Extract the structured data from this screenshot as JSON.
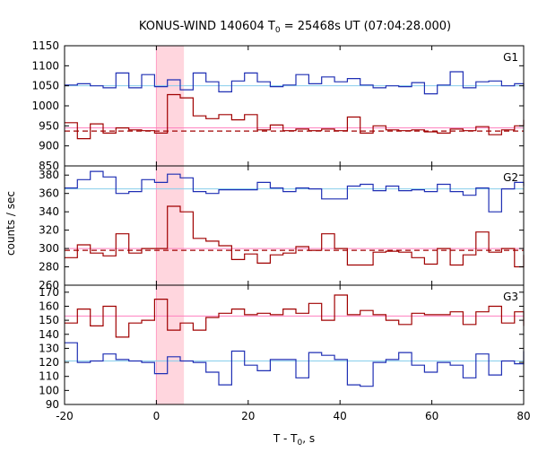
{
  "title": {
    "prefix": "KONUS-WIND 140604 T",
    "sub": "0",
    "suffix": " = 25468s UT (07:04:28.000)"
  },
  "xaxis": {
    "label_prefix": "T - T",
    "label_sub": "0",
    "label_suffix": ", s",
    "ticks": [
      -20,
      0,
      20,
      40,
      60,
      80
    ],
    "range": [
      -20,
      80
    ]
  },
  "ylabel": "counts / sec",
  "colors": {
    "blue": "#1f2fb4",
    "red": "#a00000",
    "bg_line": "#87ceeb",
    "level_line": "#ff7fbf",
    "fit_dash": "#a00000",
    "highlight": "#ffd6de",
    "highlight_line": "#ff9cc5"
  },
  "highlight": {
    "start": 0.0,
    "end": 6.0
  },
  "chart_data": [
    {
      "type": "line",
      "panel": "G1",
      "ylim": [
        850,
        1150
      ],
      "yticks": [
        850,
        900,
        950,
        1000,
        1050,
        1100,
        1150
      ],
      "series": [
        {
          "color": "blue",
          "edges": [
            -20,
            -17.2,
            -14.4,
            -11.6,
            -8.8,
            -6,
            -3.2,
            -0.4,
            2.4,
            5.2,
            8,
            10.8,
            13.6,
            16.4,
            19.2,
            22,
            24.8,
            27.6,
            30.4,
            33.2,
            36,
            38.8,
            41.6,
            44.4,
            47.2,
            50,
            52.8,
            55.6,
            58.4,
            61.2,
            64,
            66.8,
            69.6,
            72.4,
            75.2,
            78,
            80
          ],
          "values": [
            1052,
            1055,
            1050,
            1045,
            1082,
            1045,
            1078,
            1048,
            1065,
            1040,
            1082,
            1060,
            1035,
            1062,
            1082,
            1060,
            1048,
            1052,
            1078,
            1055,
            1072,
            1060,
            1068,
            1052,
            1045,
            1050,
            1048,
            1058,
            1030,
            1052,
            1085,
            1045,
            1060,
            1062,
            1050,
            1055,
            1040
          ]
        },
        {
          "color": "red",
          "edges": [
            -20,
            -17.2,
            -14.4,
            -11.6,
            -8.8,
            -6,
            -3.2,
            -0.4,
            2.4,
            5.2,
            8,
            10.8,
            13.6,
            16.4,
            19.2,
            22,
            24.8,
            27.6,
            30.4,
            33.2,
            36,
            38.8,
            41.6,
            44.4,
            47.2,
            50,
            52.8,
            55.6,
            58.4,
            61.2,
            64,
            66.8,
            69.6,
            72.4,
            75.2,
            78,
            80
          ],
          "values": [
            958,
            918,
            955,
            932,
            945,
            940,
            938,
            932,
            1028,
            1020,
            975,
            968,
            978,
            965,
            978,
            940,
            952,
            938,
            942,
            938,
            942,
            938,
            972,
            932,
            950,
            940,
            938,
            940,
            935,
            932,
            942,
            938,
            948,
            928,
            940,
            950,
            965
          ]
        }
      ],
      "background": 1050,
      "fit_level": 937,
      "pulse_level": 945
    },
    {
      "type": "line",
      "panel": "G2",
      "ylim": [
        260,
        390
      ],
      "yticks": [
        260,
        280,
        300,
        320,
        340,
        360,
        380
      ],
      "series": [
        {
          "color": "blue",
          "edges": [
            -20,
            -17.2,
            -14.4,
            -11.6,
            -8.8,
            -6,
            -3.2,
            -0.4,
            2.4,
            5.2,
            8,
            10.8,
            13.6,
            16.4,
            19.2,
            22,
            24.8,
            27.6,
            30.4,
            33.2,
            36,
            38.8,
            41.6,
            44.4,
            47.2,
            50,
            52.8,
            55.6,
            58.4,
            61.2,
            64,
            66.8,
            69.6,
            72.4,
            75.2,
            78,
            80
          ],
          "values": [
            366,
            375,
            384,
            378,
            360,
            362,
            375,
            372,
            381,
            377,
            362,
            360,
            364,
            364,
            364,
            372,
            366,
            362,
            366,
            365,
            354,
            354,
            368,
            370,
            363,
            368,
            363,
            364,
            362,
            370,
            362,
            358,
            366,
            340,
            365,
            372,
            368
          ]
        },
        {
          "color": "red",
          "edges": [
            -20,
            -17.2,
            -14.4,
            -11.6,
            -8.8,
            -6,
            -3.2,
            -0.4,
            2.4,
            5.2,
            8,
            10.8,
            13.6,
            16.4,
            19.2,
            22,
            24.8,
            27.6,
            30.4,
            33.2,
            36,
            38.8,
            41.6,
            44.4,
            47.2,
            50,
            52.8,
            55.6,
            58.4,
            61.2,
            64,
            66.8,
            69.6,
            72.4,
            75.2,
            78,
            80
          ],
          "values": [
            290,
            304,
            295,
            292,
            316,
            295,
            300,
            300,
            346,
            340,
            311,
            308,
            303,
            288,
            294,
            284,
            293,
            295,
            302,
            298,
            316,
            300,
            282,
            282,
            296,
            297,
            296,
            290,
            283,
            300,
            282,
            293,
            318,
            296,
            300,
            280,
            293
          ]
        }
      ],
      "background": 365,
      "fit_level": 298,
      "pulse_level": 300
    },
    {
      "type": "line",
      "panel": "G3",
      "ylim": [
        90,
        175
      ],
      "yticks": [
        90,
        100,
        110,
        120,
        130,
        140,
        150,
        160,
        170
      ],
      "series": [
        {
          "color": "red",
          "edges": [
            -20,
            -17.2,
            -14.4,
            -11.6,
            -8.8,
            -6,
            -3.2,
            -0.4,
            2.4,
            5.2,
            8,
            10.8,
            13.6,
            16.4,
            19.2,
            22,
            24.8,
            27.6,
            30.4,
            33.2,
            36,
            38.8,
            41.6,
            44.4,
            47.2,
            50,
            52.8,
            55.6,
            58.4,
            61.2,
            64,
            66.8,
            69.6,
            72.4,
            75.2,
            78,
            80
          ],
          "values": [
            148,
            158,
            146,
            160,
            138,
            148,
            150,
            165,
            143,
            148,
            143,
            152,
            155,
            158,
            154,
            155,
            154,
            158,
            155,
            162,
            150,
            168,
            154,
            157,
            154,
            150,
            147,
            155,
            154,
            154,
            156,
            147,
            156,
            160,
            148,
            156,
            146
          ]
        },
        {
          "color": "blue",
          "edges": [
            -20,
            -17.2,
            -14.4,
            -11.6,
            -8.8,
            -6,
            -3.2,
            -0.4,
            2.4,
            5.2,
            8,
            10.8,
            13.6,
            16.4,
            19.2,
            22,
            24.8,
            27.6,
            30.4,
            33.2,
            36,
            38.8,
            41.6,
            44.4,
            47.2,
            50,
            52.8,
            55.6,
            58.4,
            61.2,
            64,
            66.8,
            69.6,
            72.4,
            75.2,
            78,
            80
          ],
          "values": [
            134,
            120,
            121,
            126,
            122,
            121,
            120,
            112,
            124,
            121,
            120,
            113,
            104,
            128,
            118,
            114,
            122,
            122,
            109,
            127,
            125,
            122,
            104,
            103,
            120,
            122,
            127,
            118,
            113,
            120,
            118,
            109,
            126,
            111,
            121,
            119,
            128
          ]
        }
      ],
      "background": 121,
      "fit_level": null,
      "pulse_level": 153
    }
  ]
}
